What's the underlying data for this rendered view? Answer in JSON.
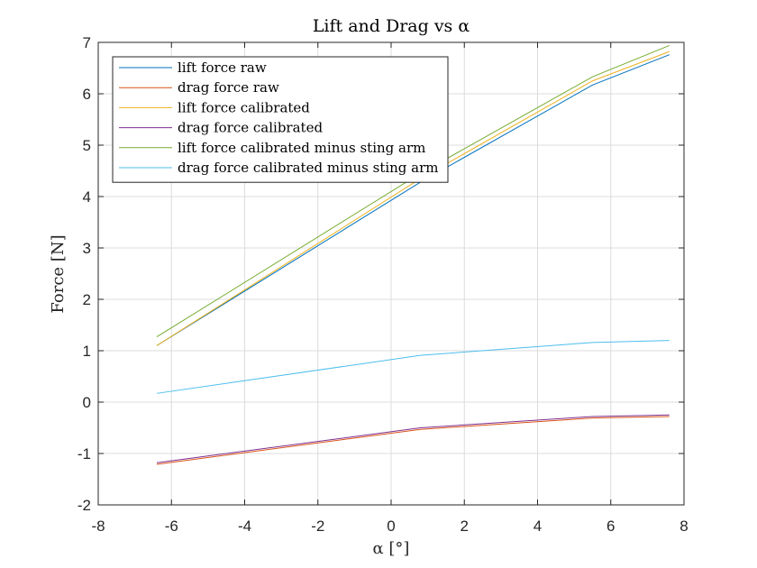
{
  "chart_data": {
    "type": "line",
    "title": "Lift and Drag vs α",
    "xlabel": "α [°]",
    "ylabel": "Force [N]",
    "xlim": [
      -8,
      8
    ],
    "ylim": [
      -2,
      7
    ],
    "xticks": [
      -8,
      -6,
      -4,
      -2,
      0,
      2,
      4,
      6,
      8
    ],
    "yticks": [
      -2,
      -1,
      0,
      1,
      2,
      3,
      4,
      5,
      6,
      7
    ],
    "xtick_labels": [
      "-8",
      "-6",
      "-4",
      "-2",
      "0",
      "2",
      "4",
      "6",
      "8"
    ],
    "ytick_labels": [
      "-2",
      "-1",
      "0",
      "1",
      "2",
      "3",
      "4",
      "5",
      "6",
      "7"
    ],
    "grid": true,
    "legend_position": "top-left",
    "x": [
      -6.4,
      0.8,
      5.5,
      7.6
    ],
    "series": [
      {
        "name": "lift force raw",
        "color": "#0072BD",
        "values": [
          1.1,
          4.28,
          6.17,
          6.76
        ]
      },
      {
        "name": "drag force raw",
        "color": "#D95319",
        "values": [
          -1.21,
          -0.53,
          -0.31,
          -0.28
        ]
      },
      {
        "name": "lift force calibrated",
        "color": "#EDB120",
        "values": [
          1.1,
          4.35,
          6.25,
          6.82
        ]
      },
      {
        "name": "drag force calibrated",
        "color": "#7E2F8E",
        "values": [
          -1.18,
          -0.5,
          -0.28,
          -0.25
        ]
      },
      {
        "name": "lift force calibrated minus sting arm",
        "color": "#77AC30",
        "values": [
          1.27,
          4.45,
          6.33,
          6.94
        ]
      },
      {
        "name": "drag force calibrated minus sting arm",
        "color": "#4DBEEE",
        "values": [
          0.17,
          0.91,
          1.16,
          1.2
        ]
      }
    ]
  }
}
